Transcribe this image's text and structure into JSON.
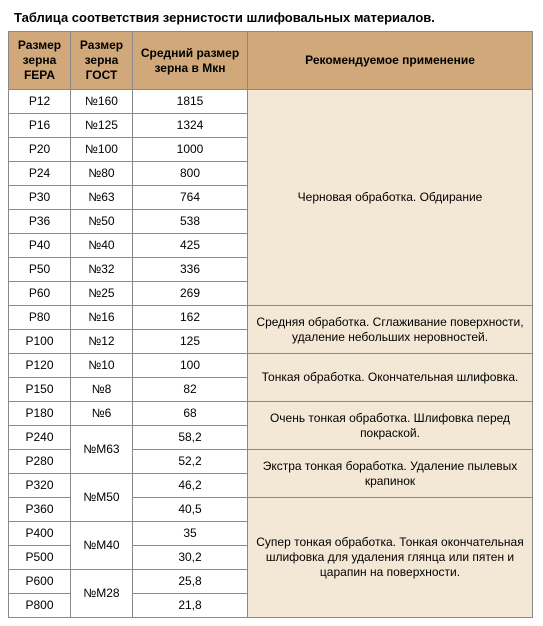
{
  "title": "Таблица соответствия зернистости шлифовальных материалов.",
  "headers": {
    "fepa": "Размер зерна FEPA",
    "gost": "Размер зерна ГОСТ",
    "avg": "Средний размер зерна в Мкн",
    "rec": "Рекомендуемое применение"
  },
  "header_bg": "#d0a87a",
  "rec_bg": "#f3e7d5",
  "border_color": "#898989",
  "rows": [
    {
      "fepa": "P12",
      "gost": "№160",
      "avg": "1815"
    },
    {
      "fepa": "P16",
      "gost": "№125",
      "avg": "1324"
    },
    {
      "fepa": "P20",
      "gost": "№100",
      "avg": "1000"
    },
    {
      "fepa": "P24",
      "gost": "№80",
      "avg": "800"
    },
    {
      "fepa": "P30",
      "gost": "№63",
      "avg": "764"
    },
    {
      "fepa": "P36",
      "gost": "№50",
      "avg": "538"
    },
    {
      "fepa": "P40",
      "gost": "№40",
      "avg": "425"
    },
    {
      "fepa": "P50",
      "gost": "№32",
      "avg": "336"
    },
    {
      "fepa": "P60",
      "gost": "№25",
      "avg": "269"
    },
    {
      "fepa": "P80",
      "gost": "№16",
      "avg": "162"
    },
    {
      "fepa": "P100",
      "gost": "№12",
      "avg": "125"
    },
    {
      "fepa": "P120",
      "gost": "№10",
      "avg": "100"
    },
    {
      "fepa": "P150",
      "gost": "№8",
      "avg": "82"
    },
    {
      "fepa": "P180",
      "gost": "№6",
      "avg": "68"
    },
    {
      "fepa": "P240",
      "gost": "№М63",
      "avg": "58,2",
      "gost_rowspan": 2
    },
    {
      "fepa": "P280",
      "avg": "52,2"
    },
    {
      "fepa": "P320",
      "gost": "№М50",
      "avg": "46,2",
      "gost_rowspan": 2
    },
    {
      "fepa": "P360",
      "avg": "40,5"
    },
    {
      "fepa": "P400",
      "gost": "№М40",
      "avg": "35",
      "gost_rowspan": 2
    },
    {
      "fepa": "P500",
      "avg": "30,2"
    },
    {
      "fepa": "P600",
      "gost": "№М28",
      "avg": "25,8",
      "gost_rowspan": 2
    },
    {
      "fepa": "P800",
      "avg": "21,8"
    }
  ],
  "recommendations": [
    {
      "start": 0,
      "span": 9,
      "text": "Черновая обработка. Обдирание"
    },
    {
      "start": 9,
      "span": 2,
      "text": "Средняя обработка. Сглаживание поверхности, удаление небольших неровностей."
    },
    {
      "start": 11,
      "span": 2,
      "text": "Тонкая обработка. Окончательная шлифовка."
    },
    {
      "start": 13,
      "span": 2,
      "text": "Очень тонкая обработка. Шлифовка перед покраской."
    },
    {
      "start": 15,
      "span": 2,
      "text": "Экстра тонкая боработка. Удаление пылевых крапинок"
    },
    {
      "start": 17,
      "span": 5,
      "text": "Супер тонкая обработка. Тонкая окончательная шлифовка для удаления глянца или пятен и царапин на поверхности."
    }
  ]
}
